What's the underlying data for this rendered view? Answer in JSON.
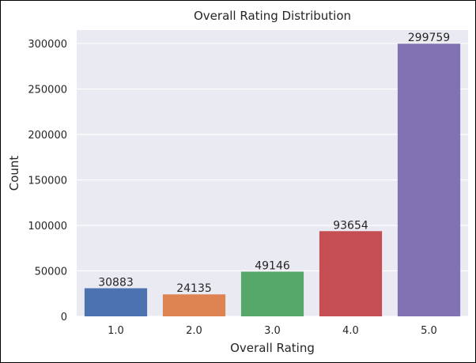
{
  "chart_data": {
    "type": "bar",
    "title": "Overall Rating Distribution",
    "xlabel": "Overall Rating",
    "ylabel": "Count",
    "categories": [
      "1.0",
      "2.0",
      "3.0",
      "4.0",
      "5.0"
    ],
    "values": [
      30883,
      24135,
      49146,
      93654,
      299759
    ],
    "data_labels": [
      "30883",
      "24135",
      "49146",
      "93654",
      "299759"
    ],
    "bar_colors": [
      "#4c72b0",
      "#dd8452",
      "#55a868",
      "#c44e52",
      "#8172b3"
    ],
    "yticks": [
      0,
      50000,
      100000,
      150000,
      200000,
      250000,
      300000
    ],
    "ytick_labels": [
      "0",
      "50000",
      "100000",
      "150000",
      "200000",
      "250000",
      "300000"
    ],
    "ylim": [
      0,
      314747
    ],
    "grid": true,
    "plot_background": "#eaeaf2",
    "grid_color": "#ffffff"
  }
}
